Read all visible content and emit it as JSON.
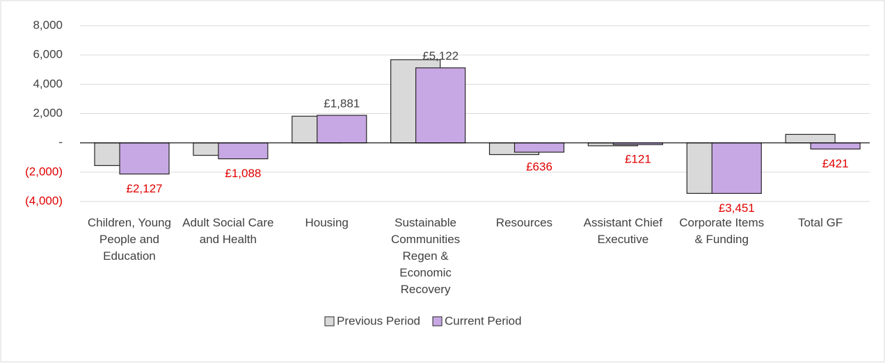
{
  "chart_data": {
    "type": "bar",
    "categories": [
      "Children, Young People and Education",
      "Adult Social Care and Health",
      "Housing",
      "Sustainable Communities Regen & Economic Recovery",
      "Resources",
      "Assistant Chief Executive",
      "Corporate Items & Funding",
      "Total GF"
    ],
    "series": [
      {
        "name": "Previous Period",
        "color": "#d9d9d9",
        "values": [
          -1550,
          -850,
          1820,
          5680,
          -800,
          -200,
          -3450,
          580
        ]
      },
      {
        "name": "Current Period",
        "color": "#c8a8e4",
        "values": [
          -2127,
          -1088,
          1881,
          5122,
          -636,
          -121,
          -3451,
          -421
        ],
        "value_labels": [
          "£2,127",
          "£1,088",
          "£1,881",
          "£5,122",
          "£636",
          "£121",
          "£3,451",
          "£421"
        ]
      }
    ],
    "ylim": [
      -4000,
      8000
    ],
    "yticks": [
      {
        "value": -4000,
        "label": "(4,000)"
      },
      {
        "value": -2000,
        "label": "(2,000)"
      },
      {
        "value": 0,
        "label": "-"
      },
      {
        "value": 2000,
        "label": "2,000"
      },
      {
        "value": 4000,
        "label": "4,000"
      },
      {
        "value": 6000,
        "label": "6,000"
      },
      {
        "value": 8000,
        "label": "8,000"
      }
    ],
    "grid": true,
    "legend": "bottom"
  }
}
